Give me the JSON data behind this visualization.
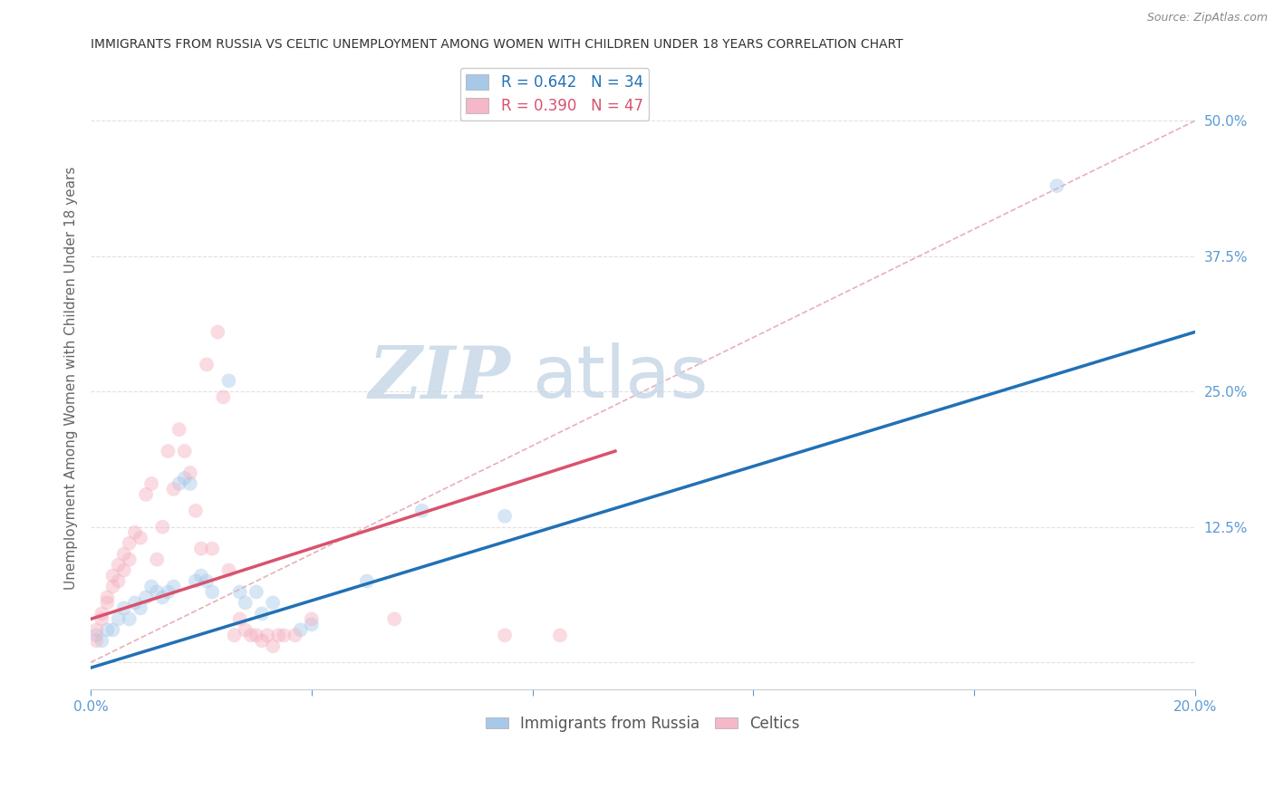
{
  "title": "IMMIGRANTS FROM RUSSIA VS CELTIC UNEMPLOYMENT AMONG WOMEN WITH CHILDREN UNDER 18 YEARS CORRELATION CHART",
  "source": "Source: ZipAtlas.com",
  "ylabel": "Unemployment Among Women with Children Under 18 years",
  "xlim": [
    0.0,
    0.2
  ],
  "ylim": [
    -0.025,
    0.55
  ],
  "xticks": [
    0.0,
    0.04,
    0.08,
    0.12,
    0.16,
    0.2
  ],
  "xtick_labels": [
    "0.0%",
    "",
    "",
    "",
    "",
    "20.0%"
  ],
  "yticks": [
    0.0,
    0.125,
    0.25,
    0.375,
    0.5
  ],
  "ytick_labels": [
    "",
    "12.5%",
    "25.0%",
    "37.5%",
    "50.0%"
  ],
  "legend_entries": [
    {
      "label": "R = 0.642   N = 34",
      "color": "#a8c8e8"
    },
    {
      "label": "R = 0.390   N = 47",
      "color": "#f4b8c8"
    }
  ],
  "legend_labels_bottom": [
    "Immigrants from Russia",
    "Celtics"
  ],
  "russia_scatter": [
    [
      0.001,
      0.025
    ],
    [
      0.002,
      0.02
    ],
    [
      0.003,
      0.03
    ],
    [
      0.004,
      0.03
    ],
    [
      0.005,
      0.04
    ],
    [
      0.006,
      0.05
    ],
    [
      0.007,
      0.04
    ],
    [
      0.008,
      0.055
    ],
    [
      0.009,
      0.05
    ],
    [
      0.01,
      0.06
    ],
    [
      0.011,
      0.07
    ],
    [
      0.012,
      0.065
    ],
    [
      0.013,
      0.06
    ],
    [
      0.014,
      0.065
    ],
    [
      0.015,
      0.07
    ],
    [
      0.016,
      0.165
    ],
    [
      0.017,
      0.17
    ],
    [
      0.018,
      0.165
    ],
    [
      0.019,
      0.075
    ],
    [
      0.02,
      0.08
    ],
    [
      0.021,
      0.075
    ],
    [
      0.022,
      0.065
    ],
    [
      0.025,
      0.26
    ],
    [
      0.027,
      0.065
    ],
    [
      0.028,
      0.055
    ],
    [
      0.03,
      0.065
    ],
    [
      0.031,
      0.045
    ],
    [
      0.033,
      0.055
    ],
    [
      0.038,
      0.03
    ],
    [
      0.04,
      0.035
    ],
    [
      0.05,
      0.075
    ],
    [
      0.06,
      0.14
    ],
    [
      0.075,
      0.135
    ],
    [
      0.175,
      0.44
    ]
  ],
  "celtic_scatter": [
    [
      0.001,
      0.02
    ],
    [
      0.001,
      0.03
    ],
    [
      0.002,
      0.04
    ],
    [
      0.002,
      0.045
    ],
    [
      0.003,
      0.055
    ],
    [
      0.003,
      0.06
    ],
    [
      0.004,
      0.07
    ],
    [
      0.004,
      0.08
    ],
    [
      0.005,
      0.075
    ],
    [
      0.005,
      0.09
    ],
    [
      0.006,
      0.085
    ],
    [
      0.006,
      0.1
    ],
    [
      0.007,
      0.095
    ],
    [
      0.007,
      0.11
    ],
    [
      0.008,
      0.12
    ],
    [
      0.009,
      0.115
    ],
    [
      0.01,
      0.155
    ],
    [
      0.011,
      0.165
    ],
    [
      0.012,
      0.095
    ],
    [
      0.013,
      0.125
    ],
    [
      0.014,
      0.195
    ],
    [
      0.015,
      0.16
    ],
    [
      0.016,
      0.215
    ],
    [
      0.017,
      0.195
    ],
    [
      0.018,
      0.175
    ],
    [
      0.019,
      0.14
    ],
    [
      0.02,
      0.105
    ],
    [
      0.021,
      0.275
    ],
    [
      0.022,
      0.105
    ],
    [
      0.023,
      0.305
    ],
    [
      0.024,
      0.245
    ],
    [
      0.025,
      0.085
    ],
    [
      0.026,
      0.025
    ],
    [
      0.027,
      0.04
    ],
    [
      0.028,
      0.03
    ],
    [
      0.029,
      0.025
    ],
    [
      0.03,
      0.025
    ],
    [
      0.031,
      0.02
    ],
    [
      0.032,
      0.025
    ],
    [
      0.033,
      0.015
    ],
    [
      0.034,
      0.025
    ],
    [
      0.035,
      0.025
    ],
    [
      0.037,
      0.025
    ],
    [
      0.04,
      0.04
    ],
    [
      0.055,
      0.04
    ],
    [
      0.075,
      0.025
    ],
    [
      0.085,
      0.025
    ]
  ],
  "russia_line": [
    [
      0.0,
      -0.005
    ],
    [
      0.2,
      0.305
    ]
  ],
  "celtic_line": [
    [
      0.0,
      0.04
    ],
    [
      0.095,
      0.195
    ]
  ],
  "diagonal_line": [
    [
      0.0,
      0.0
    ],
    [
      0.2,
      0.5
    ]
  ],
  "scatter_size": 130,
  "scatter_alpha": 0.45,
  "russia_color": "#a8c8e8",
  "celtic_color": "#f4b0c0",
  "russia_line_color": "#2171b5",
  "celtic_line_color": "#d9526e",
  "diagonal_color": "#e8b0b8",
  "bg_color": "#ffffff",
  "grid_color": "#e0e0e0",
  "axis_label_color": "#5b9bd5",
  "title_color": "#333333"
}
